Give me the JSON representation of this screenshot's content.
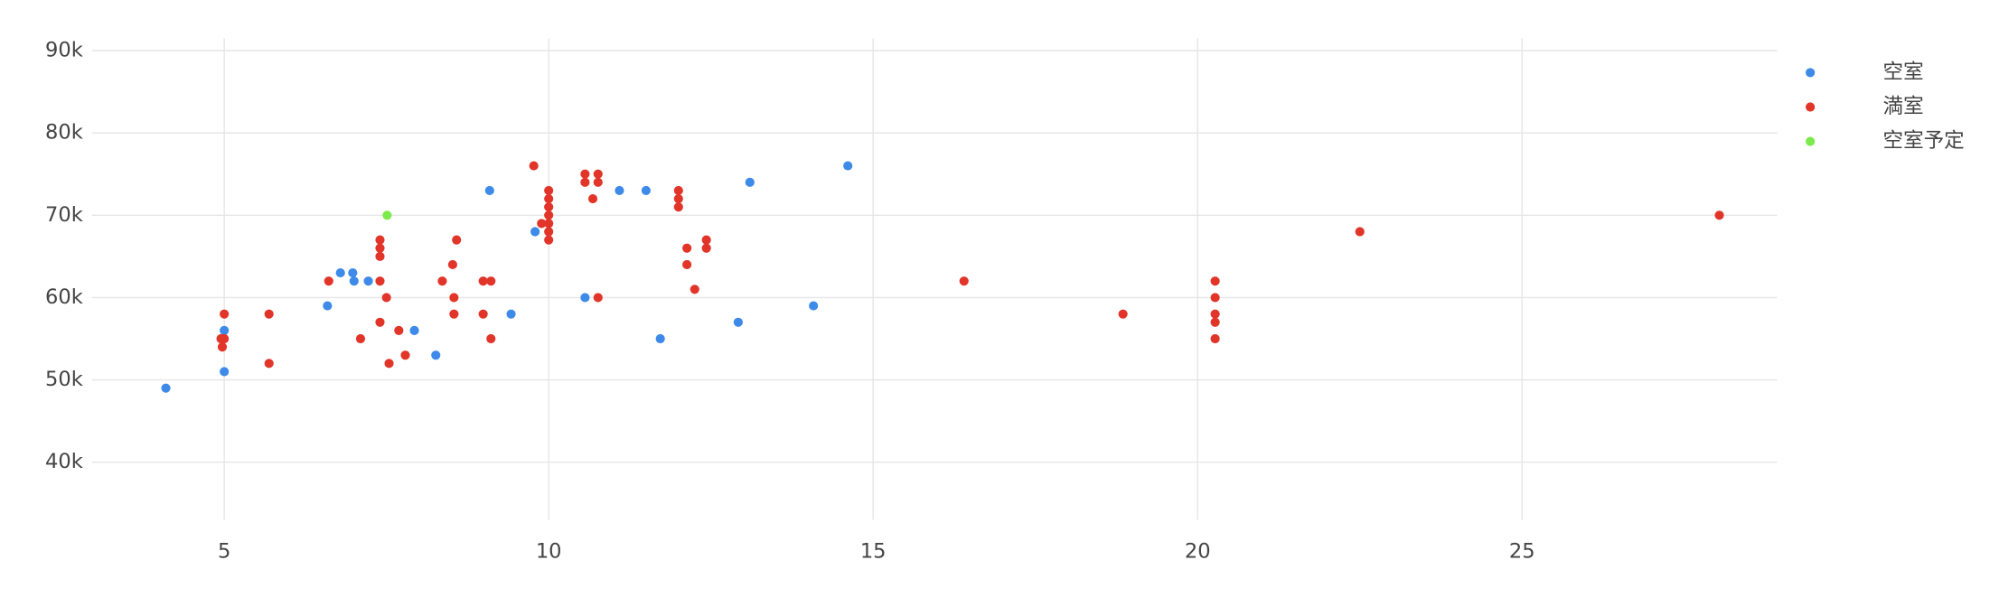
{
  "chart_data": {
    "type": "scatter",
    "xlim": [
      2.96,
      28.93
    ],
    "ylim": [
      33000,
      91500
    ],
    "xticks": [
      5,
      10,
      15,
      20,
      25
    ],
    "yticks": [
      {
        "value": 40000,
        "label": "40k"
      },
      {
        "value": 50000,
        "label": "50k"
      },
      {
        "value": 60000,
        "label": "60k"
      },
      {
        "value": 70000,
        "label": "70k"
      },
      {
        "value": 80000,
        "label": "80k"
      },
      {
        "value": 90000,
        "label": "90k"
      }
    ],
    "grid": true,
    "legend": "top-right",
    "series": [
      {
        "name": "空室",
        "color": "#3d8ae8",
        "x": [
          4.1,
          5,
          5,
          6.59,
          6.79,
          6.98,
          7.0,
          7.22,
          7.93,
          8.26,
          9.09,
          9.42,
          9.79,
          10.56,
          11.09,
          11.5,
          11.72,
          12.92,
          13.1,
          14.08,
          14.61
        ],
        "values": [
          49000,
          56000,
          51000,
          59000,
          63000,
          63000,
          62000,
          62000,
          56000,
          53000,
          73000,
          58000,
          68000,
          60000,
          73000,
          73000,
          55000,
          57000,
          74000,
          59000,
          76000
        ]
      },
      {
        "name": "満室",
        "color": "#e2352a",
        "x": [
          5,
          4.95,
          4.97,
          5.0,
          5.69,
          5.69,
          6.61,
          7.1,
          7.4,
          7.4,
          7.4,
          7.4,
          7.4,
          7.5,
          7.54,
          7.69,
          7.79,
          8.36,
          8.52,
          8.54,
          8.54,
          8.58,
          8.99,
          9.11,
          8.99,
          9.11,
          9.77,
          9.89,
          10,
          10,
          10,
          10,
          10,
          10,
          10,
          10.56,
          10.56,
          10.76,
          10.76,
          10.68,
          10.76,
          12.0,
          12.0,
          12.0,
          12.13,
          12.13,
          12.25,
          12.43,
          12.43,
          16.4,
          18.85,
          20.27,
          20.27,
          20.27,
          20.27,
          20.27,
          22.5,
          28.04
        ],
        "values": [
          58000,
          55000,
          54000,
          55000,
          58000,
          52000,
          62000,
          55000,
          67000,
          66000,
          65000,
          62000,
          57000,
          60000,
          52000,
          56000,
          53000,
          62000,
          64000,
          60000,
          58000,
          67000,
          62000,
          62000,
          58000,
          55000,
          76000,
          69000,
          73000,
          72000,
          71000,
          70000,
          69000,
          68000,
          67000,
          75000,
          74000,
          75000,
          74000,
          72000,
          60000,
          73000,
          72000,
          71000,
          66000,
          64000,
          61000,
          67000,
          66000,
          62000,
          58000,
          62000,
          60000,
          58000,
          57000,
          55000,
          68000,
          70000
        ]
      },
      {
        "name": "空室予定",
        "color": "#7bea4c",
        "x": [
          7.51
        ],
        "values": [
          70000
        ]
      }
    ]
  }
}
